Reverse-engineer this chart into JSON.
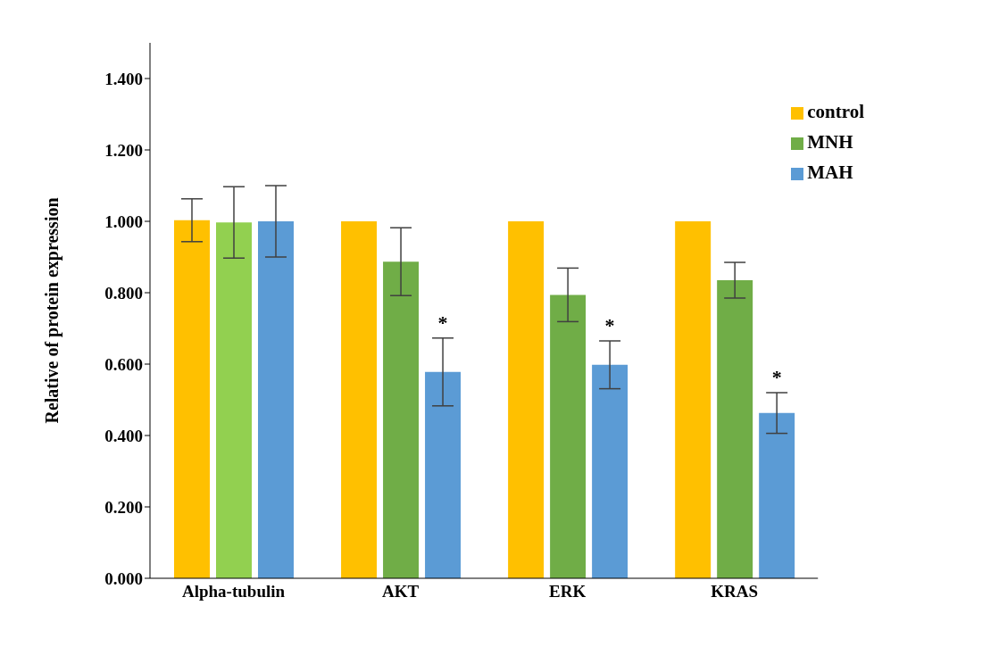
{
  "chart_data": {
    "type": "bar",
    "ylabel": "Relative of protein expression",
    "categories": [
      "Alpha-tubulin",
      "AKT",
      "ERK",
      "KRAS"
    ],
    "series": [
      {
        "name": "control",
        "color": "#ffc000",
        "values": [
          1.003,
          1.0,
          1.0,
          1.0
        ],
        "errors": [
          0.06,
          0,
          0,
          0
        ]
      },
      {
        "name": "MNH",
        "color": "#70ad47",
        "colors": [
          "#92d050",
          "#70ad47",
          "#70ad47",
          "#70ad47"
        ],
        "values": [
          0.997,
          0.887,
          0.794,
          0.835
        ],
        "errors": [
          0.1,
          0.095,
          0.075,
          0.05
        ]
      },
      {
        "name": "MAH",
        "color": "#5b9bd5",
        "values": [
          1.0,
          0.578,
          0.598,
          0.463
        ],
        "errors": [
          0.1,
          0.095,
          0.067,
          0.057
        ],
        "value_labels": [
          null,
          "*",
          "*",
          "*"
        ]
      }
    ],
    "ylim": [
      0,
      1.5
    ],
    "yticks": [
      {
        "value": 0,
        "label": "0.000"
      },
      {
        "value": 0.2,
        "label": "0.200"
      },
      {
        "value": 0.4,
        "label": "0.400"
      },
      {
        "value": 0.6,
        "label": "0.600"
      },
      {
        "value": 0.8,
        "label": "0.800"
      },
      {
        "value": 1.0,
        "label": "1.000"
      },
      {
        "value": 1.2,
        "label": "1.200"
      },
      {
        "value": 1.4,
        "label": "1.400"
      }
    ],
    "grid": false,
    "legend": "top right"
  }
}
